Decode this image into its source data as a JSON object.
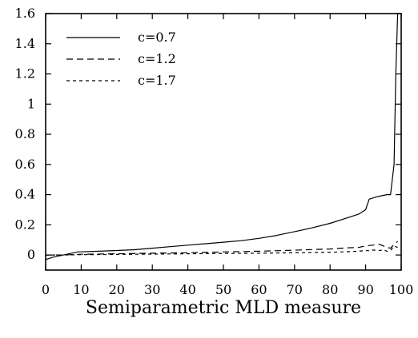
{
  "chart_data": {
    "type": "line",
    "title": "",
    "xlabel": "Semiparametric MLD measure",
    "ylabel": "",
    "xlim": [
      0,
      100
    ],
    "ylim": [
      -0.1,
      1.6
    ],
    "x_ticks": [
      "0",
      "10",
      "20",
      "30",
      "40",
      "50",
      "60",
      "70",
      "80",
      "90",
      "100"
    ],
    "y_ticks": [
      "0",
      "0.2",
      "0.4",
      "0.6",
      "0.8",
      "1",
      "1.2",
      "1.4",
      "1.6"
    ],
    "legend_position": "top-left",
    "grid": false,
    "series": [
      {
        "name": "c=0.7",
        "dash": "solid",
        "x": [
          0,
          2,
          5,
          9,
          15,
          20,
          25,
          30,
          35,
          40,
          45,
          50,
          55,
          60,
          65,
          70,
          75,
          80,
          84,
          88,
          90,
          91,
          93,
          95,
          96,
          97,
          98,
          98.5,
          99
        ],
        "y": [
          -0.03,
          -0.015,
          0.0,
          0.02,
          0.025,
          0.03,
          0.035,
          0.045,
          0.055,
          0.065,
          0.075,
          0.085,
          0.095,
          0.11,
          0.13,
          0.155,
          0.18,
          0.21,
          0.24,
          0.27,
          0.3,
          0.37,
          0.385,
          0.395,
          0.4,
          0.4,
          0.6,
          1.2,
          1.6
        ]
      },
      {
        "name": "c=1.2",
        "dash": "dashed",
        "x": [
          0,
          5,
          10,
          20,
          30,
          40,
          50,
          60,
          70,
          75,
          80,
          85,
          88,
          90,
          92,
          94,
          95,
          96,
          97,
          98,
          99
        ],
        "y": [
          0.0,
          0.0,
          0.005,
          0.008,
          0.012,
          0.015,
          0.02,
          0.025,
          0.032,
          0.036,
          0.04,
          0.048,
          0.05,
          0.06,
          0.065,
          0.07,
          0.06,
          0.05,
          0.045,
          0.07,
          0.09
        ]
      },
      {
        "name": "c=1.7",
        "dash": "dotted",
        "x": [
          0,
          5,
          10,
          20,
          30,
          40,
          50,
          60,
          70,
          80,
          85,
          88,
          90,
          91,
          92,
          94,
          95,
          96,
          97,
          98,
          99
        ],
        "y": [
          0.0,
          0.0,
          0.002,
          0.004,
          0.006,
          0.008,
          0.01,
          0.012,
          0.015,
          0.018,
          0.022,
          0.025,
          0.03,
          0.028,
          0.033,
          0.03,
          0.035,
          0.025,
          0.03,
          0.06,
          0.05
        ]
      }
    ]
  }
}
